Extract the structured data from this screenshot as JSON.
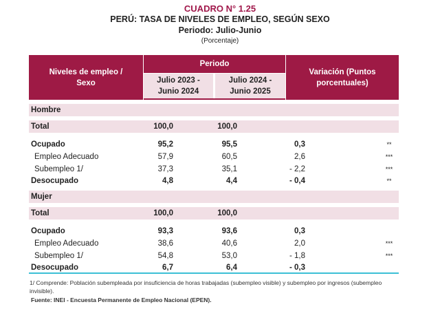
{
  "title": {
    "number": "CUADRO N° 1.25",
    "main": "PERÚ: TASA DE NIVELES DE EMPLEO, SEGÚN SEXO",
    "period": "Periodo: Julio-Junio",
    "unit": "(Porcentaje)"
  },
  "header": {
    "col0": "Niveles de empleo / Sexo",
    "periodo": "Periodo",
    "p1": "Julio 2023 - Junio 2024",
    "p2": "Julio 2024 - Junio 2025",
    "variacion": "Variación (Puntos porcentuales)"
  },
  "colors": {
    "header": "#9e1a45",
    "band": "#f1dfe5",
    "rule": "#3bbfd6",
    "title": "#a0174a"
  },
  "groups": [
    {
      "name": "Hombre",
      "rows": [
        {
          "label": "Total",
          "v1": "100,0",
          "v2": "100,0",
          "var": "",
          "sig": "",
          "bold": true,
          "band": true
        },
        {
          "label": "Ocupado",
          "v1": "95,2",
          "v2": "95,5",
          "var": "0,3",
          "sig": "**",
          "bold": true
        },
        {
          "label": "Empleo Adecuado",
          "v1": "57,9",
          "v2": "60,5",
          "var": "2,6",
          "sig": "***",
          "bold": false
        },
        {
          "label": "Subempleo 1/",
          "v1": "37,3",
          "v2": "35,1",
          "var": "- 2,2",
          "sig": "***",
          "bold": false
        },
        {
          "label": "Desocupado",
          "v1": "4,8",
          "v2": "4,4",
          "var": "- 0,4",
          "sig": "**",
          "bold": true
        }
      ]
    },
    {
      "name": "Mujer",
      "rows": [
        {
          "label": "Total",
          "v1": "100,0",
          "v2": "100,0",
          "var": "",
          "sig": "",
          "bold": true,
          "band": true
        },
        {
          "label": "Ocupado",
          "v1": "93,3",
          "v2": "93,6",
          "var": "0,3",
          "sig": "",
          "bold": true
        },
        {
          "label": "Empleo Adecuado",
          "v1": "38,6",
          "v2": "40,6",
          "var": "2,0",
          "sig": "***",
          "bold": false
        },
        {
          "label": "Subempleo 1/",
          "v1": "54,8",
          "v2": "53,0",
          "var": "- 1,8",
          "sig": "***",
          "bold": false
        },
        {
          "label": "Desocupado",
          "v1": "6,7",
          "v2": "6,4",
          "var": "- 0,3",
          "sig": "",
          "bold": true
        }
      ]
    }
  ],
  "footnote": "1/ Comprende: Población subempleada por insuficiencia de horas trabajadas (subempleo visible) y subempleo por ingresos (subempleo invisible).",
  "source": "Fuente: INEI - Encuesta Permanente de Empleo Nacional (EPEN)."
}
